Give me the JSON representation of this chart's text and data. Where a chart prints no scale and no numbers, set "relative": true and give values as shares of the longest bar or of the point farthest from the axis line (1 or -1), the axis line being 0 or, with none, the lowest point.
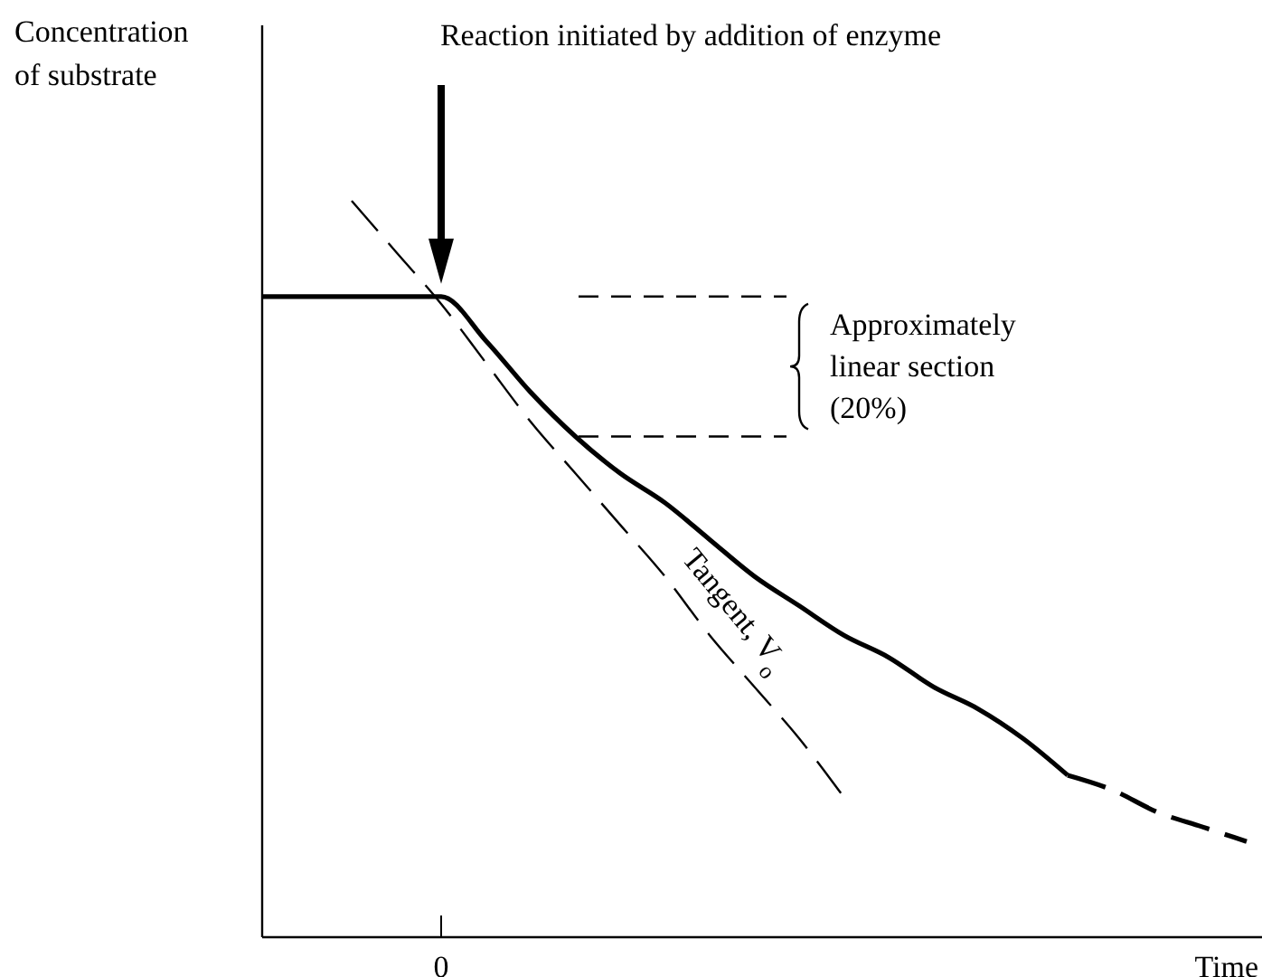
{
  "chart_data": {
    "type": "line",
    "relative": true,
    "ylabel": "Concentration of substrate",
    "xlabel": "Time",
    "grid": false,
    "categories": [
      null,
      null,
      null,
      null,
      null,
      null,
      null,
      null,
      null,
      null,
      null,
      null,
      null,
      null,
      null,
      null,
      null,
      null,
      null,
      null,
      null,
      null,
      null
    ],
    "series": [
      {
        "color": "#000000",
        "line_style": "solid",
        "values": [
          0.87,
          0.87,
          0.87,
          0.87,
          0.87,
          0.81,
          0.74,
          0.68,
          0.63,
          0.59,
          0.54,
          0.49,
          0.45,
          0.41,
          0.38,
          0.34,
          0.31,
          0.27,
          0.22,
          null,
          null,
          null,
          null
        ]
      },
      {
        "color": "#000000",
        "line_style": "dashed",
        "values": [
          null,
          null,
          null,
          null,
          null,
          null,
          null,
          null,
          null,
          null,
          null,
          null,
          null,
          null,
          null,
          null,
          null,
          null,
          0.22,
          0.2,
          0.17,
          0.15,
          0.13
        ]
      },
      {
        "name": "Tangent, V$_{o}$",
        "color": "#000000",
        "line_style": "dashed",
        "values": [
          null,
          null,
          1.0,
          0.93,
          0.86,
          0.78,
          0.7,
          0.63,
          0.56,
          0.49,
          0.41,
          0.34,
          0.27,
          0.19,
          null,
          null,
          null,
          null,
          null,
          null,
          null,
          null,
          null
        ]
      }
    ],
    "ref_lines": [
      {
        "axis": "y",
        "value": 0.87,
        "line_style": "dashed"
      },
      {
        "axis": "y",
        "value": 0.68,
        "line_style": "dashed"
      }
    ],
    "annotations": [
      "Reaction initiated by addition of enzyme",
      "0",
      "Approximately linear section (20%)"
    ]
  }
}
